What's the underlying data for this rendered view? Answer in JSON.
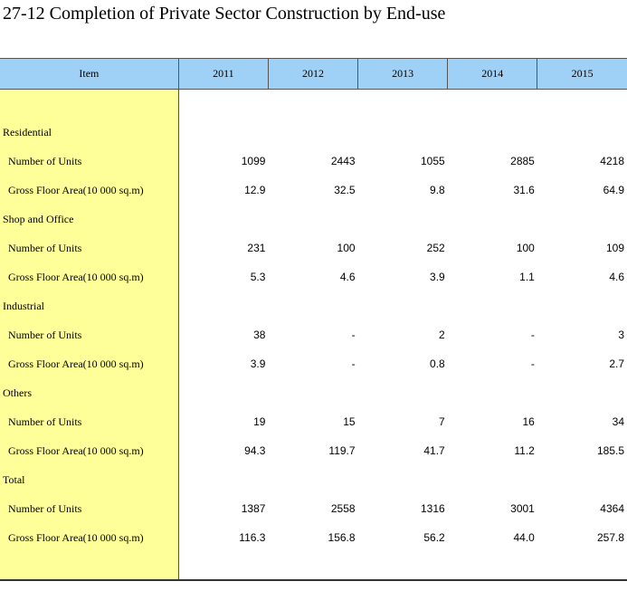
{
  "title": "27-12  Completion of Private Sector Construction by End-use",
  "header": {
    "item": "Item",
    "years": [
      "2011",
      "2012",
      "2013",
      "2014",
      "2015"
    ]
  },
  "groups": [
    {
      "name": "Residential",
      "rows": [
        {
          "label": "Number of Units",
          "values": [
            "1099",
            "2443",
            "1055",
            "2885",
            "4218"
          ]
        },
        {
          "label": "Gross Floor Area(10 000 sq.m)",
          "values": [
            "12.9",
            "32.5",
            "9.8",
            "31.6",
            "64.9"
          ]
        }
      ]
    },
    {
      "name": "Shop and Office",
      "rows": [
        {
          "label": "Number of Units",
          "values": [
            "231",
            "100",
            "252",
            "100",
            "109"
          ]
        },
        {
          "label": "Gross Floor Area(10 000 sq.m)",
          "values": [
            "5.3",
            "4.6",
            "3.9",
            "1.1",
            "4.6"
          ]
        }
      ]
    },
    {
      "name": "Industrial",
      "rows": [
        {
          "label": "Number of Units",
          "values": [
            "38",
            "-",
            "2",
            "-",
            "3"
          ]
        },
        {
          "label": "Gross Floor Area(10 000 sq.m)",
          "values": [
            "3.9",
            "-",
            "0.8",
            "-",
            "2.7"
          ]
        }
      ]
    },
    {
      "name": "Others",
      "rows": [
        {
          "label": "Number of Units",
          "values": [
            "19",
            "15",
            "7",
            "16",
            "34"
          ]
        },
        {
          "label": "Gross Floor Area(10 000 sq.m)",
          "values": [
            "94.3",
            "119.7",
            "41.7",
            "11.2",
            "185.5"
          ]
        }
      ]
    },
    {
      "name": "Total",
      "rows": [
        {
          "label": "Number of Units",
          "values": [
            "1387",
            "2558",
            "1316",
            "3001",
            "4364"
          ]
        },
        {
          "label": "Gross Floor Area(10 000 sq.m)",
          "values": [
            "116.3",
            "156.8",
            "56.2",
            "44.0",
            "257.8"
          ]
        }
      ]
    }
  ]
}
